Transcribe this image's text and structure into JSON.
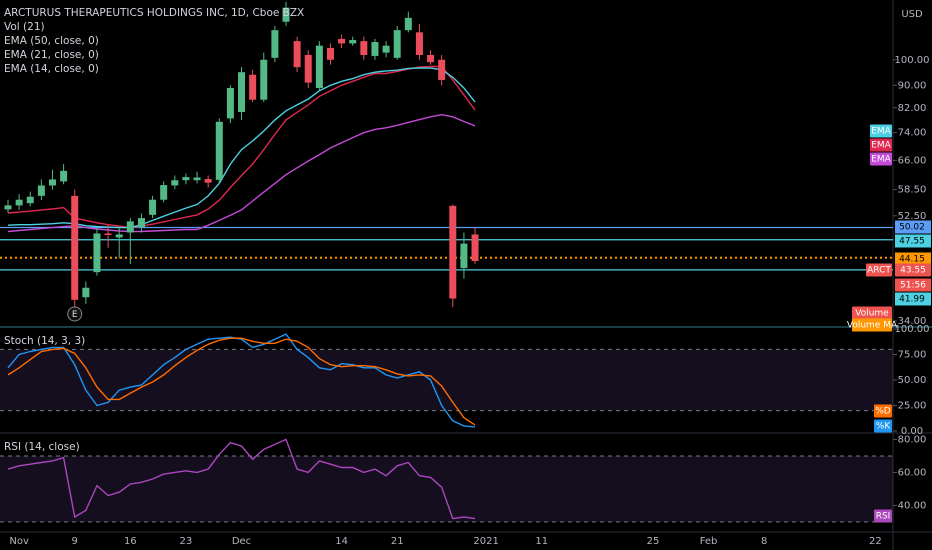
{
  "chart_data": [
    {
      "type": "candlestick",
      "title": "ARCTURUS THERAPEUTICS HOLDINGS INC, 1D, Cboe BZX",
      "legend": [
        "Vol (21)",
        "EMA (50, close, 0)",
        "EMA (21, close, 0)",
        "EMA (14, close, 0)"
      ],
      "currency": "USD",
      "log_scale": true,
      "grid": false,
      "up_color": "#53b987",
      "down_color": "#eb4d5c",
      "categories": [
        null,
        "Nov",
        null,
        null,
        null,
        null,
        "9",
        null,
        null,
        null,
        null,
        "16",
        null,
        null,
        null,
        null,
        "23",
        null,
        null,
        null,
        null,
        "Dec",
        null,
        null,
        null,
        null,
        null,
        null,
        null,
        null,
        "14",
        null,
        null,
        null,
        null,
        "21",
        null,
        null,
        null,
        null,
        null,
        null,
        null,
        "2021",
        null,
        null,
        null,
        null,
        "11",
        null,
        null,
        null,
        null,
        null,
        null,
        null,
        null,
        null,
        "25",
        null,
        null,
        null,
        null,
        "Feb",
        null,
        null,
        null,
        null,
        "8",
        null,
        null,
        null,
        null,
        null,
        null,
        null,
        null,
        null,
        "22"
      ],
      "open": [
        53.9,
        54.8,
        55.3,
        57,
        59.5,
        60.5,
        57,
        37.5,
        41.6,
        48.8,
        48,
        49,
        50.1,
        52.7,
        56.1,
        59.5,
        60.8,
        60.8,
        61.1,
        60.9,
        78.5,
        80.6,
        94,
        84.8,
        100.8,
        117,
        108,
        102,
        89,
        105,
        109,
        107,
        108,
        101.6,
        103,
        100.8,
        113,
        112,
        102,
        100,
        54.7,
        42.3,
        48.6,
        null,
        null,
        null,
        null,
        null,
        null,
        null,
        null,
        null,
        null,
        null,
        null,
        null,
        null,
        null,
        null,
        null,
        null,
        null,
        null,
        null,
        null,
        null,
        null,
        null,
        null,
        null,
        null,
        null,
        null,
        null,
        null,
        null,
        null,
        null,
        null
      ],
      "high": [
        56.1,
        57.4,
        58,
        61,
        63.5,
        65,
        58.5,
        40,
        50,
        50.5,
        50,
        52,
        53,
        57,
        60.5,
        62,
        62.5,
        63,
        62,
        78.5,
        90,
        97,
        96,
        103,
        115,
        127,
        110,
        104,
        108,
        107,
        111,
        110,
        110,
        109,
        108,
        115,
        122,
        116,
        104,
        102,
        55,
        49,
        50,
        null,
        null,
        null,
        null,
        null,
        null,
        null,
        null,
        null,
        null,
        null,
        null,
        null,
        null,
        null,
        null,
        null,
        null,
        null,
        null,
        null,
        null,
        null,
        null,
        null,
        null,
        null,
        null,
        null,
        null,
        null,
        null,
        null,
        null,
        null,
        null
      ],
      "low": [
        53.2,
        53.8,
        54.6,
        56,
        58.5,
        59.8,
        34.2,
        36.5,
        41,
        46,
        44,
        43,
        49,
        52,
        55.5,
        58.6,
        59.8,
        60,
        59,
        60,
        77,
        78,
        84,
        84,
        99,
        115,
        95,
        89,
        88,
        98,
        105,
        106,
        100,
        100,
        101,
        100,
        112,
        100,
        98,
        90,
        36,
        40.5,
        43,
        null,
        null,
        null,
        null,
        null,
        null,
        null,
        null,
        null,
        null,
        null,
        null,
        null,
        null,
        null,
        null,
        null,
        null,
        null,
        null,
        null,
        null,
        null,
        null,
        null,
        null,
        null,
        null,
        null,
        null,
        null,
        null,
        null,
        null,
        null,
        null
      ],
      "close": [
        54.8,
        56.1,
        56.8,
        59.5,
        61,
        63.2,
        37.1,
        39,
        48.8,
        48.5,
        48.6,
        51.3,
        52,
        56.1,
        59.6,
        60.8,
        61.6,
        61.5,
        60.2,
        77.4,
        89,
        95,
        84.8,
        100,
        113,
        124,
        97,
        91,
        106,
        100,
        107,
        108.5,
        102,
        107.6,
        106,
        113,
        118.9,
        102,
        99,
        92,
        37.3,
        46.8,
        43.55,
        null,
        null,
        null,
        null,
        null,
        null,
        null,
        null,
        null,
        null,
        null,
        null,
        null,
        null,
        null,
        null,
        null,
        null,
        null,
        null,
        null,
        null,
        null,
        null,
        null,
        null,
        null,
        null,
        null,
        null,
        null,
        null,
        null,
        null,
        null,
        null
      ],
      "series": [
        {
          "name": "EMA",
          "color": "#c34bd6",
          "values": [
            49.2,
            49.4,
            49.6,
            49.8,
            50,
            50.2,
            50.4,
            50,
            49.7,
            49.5,
            49.3,
            49.2,
            49.2,
            49.3,
            49.4,
            49.5,
            49.6,
            49.6,
            50.5,
            51.5,
            52.6,
            53.8,
            55.8,
            57.9,
            60,
            62.2,
            64,
            65.8,
            67.6,
            69.5,
            71,
            72.5,
            74,
            75,
            75.5,
            76.3,
            77.2,
            78.1,
            79,
            79.7,
            79,
            77.5,
            76.1,
            null,
            null,
            null,
            null,
            null,
            null,
            null,
            null,
            null,
            null,
            null,
            null,
            null,
            null,
            null,
            null,
            null,
            null,
            null,
            null,
            null,
            null,
            null,
            null,
            null,
            null,
            null,
            null,
            null,
            null,
            null,
            null,
            null,
            null,
            null,
            null
          ]
        },
        {
          "name": "EMA",
          "color": "#e0284f",
          "values": [
            53.1,
            53.3,
            53.5,
            53.8,
            54,
            54.3,
            52,
            51.5,
            51,
            50.6,
            50.3,
            50,
            50.3,
            50.7,
            51.2,
            51.7,
            52.2,
            52.7,
            54,
            56,
            59,
            62,
            65,
            69,
            73.5,
            78,
            80.5,
            83,
            86,
            88,
            90,
            91.5,
            93,
            94.5,
            94.5,
            95.3,
            96.2,
            97,
            97.3,
            97.2,
            92,
            86.5,
            81.3,
            null,
            null,
            null,
            null,
            null,
            null,
            null,
            null,
            null,
            null,
            null,
            null,
            null,
            null,
            null,
            null,
            null,
            null,
            null,
            null,
            null,
            null,
            null,
            null,
            null,
            null,
            null,
            null,
            null,
            null,
            null,
            null,
            null,
            null,
            null,
            null
          ]
        },
        {
          "name": "EMA",
          "color": "#4dd0e1",
          "values": [
            50.5,
            50.6,
            50.6,
            50.7,
            50.8,
            51,
            50.8,
            50.4,
            50.2,
            50.1,
            50,
            50,
            50.6,
            51.5,
            52.4,
            53.3,
            54.2,
            55,
            57,
            60,
            65,
            69,
            71.5,
            74.5,
            78,
            81,
            83,
            85,
            88,
            90,
            91.5,
            92.5,
            94,
            95,
            95.5,
            95.8,
            96.5,
            96.7,
            96.6,
            96,
            93,
            89,
            84,
            null,
            null,
            null,
            null,
            null,
            null,
            null,
            null,
            null,
            null,
            null,
            null,
            null,
            null,
            null,
            null,
            null,
            null,
            null,
            null,
            null,
            null,
            null,
            null,
            null,
            null,
            null,
            null,
            null,
            null,
            null,
            null,
            null,
            null,
            null,
            null
          ]
        }
      ],
      "ylim": [
        33.3,
        128
      ],
      "yticks": [
        {
          "value": 34,
          "label": "34.00"
        },
        {
          "value": 52.5,
          "label": "52.50"
        },
        {
          "value": 58.5,
          "label": "58.50"
        },
        {
          "value": 66,
          "label": "66.00"
        },
        {
          "value": 74,
          "label": "74.00"
        },
        {
          "value": 82,
          "label": "82.00"
        },
        {
          "value": 90,
          "label": "90.00"
        },
        {
          "value": 100,
          "label": "100.00"
        }
      ],
      "price_lines": [
        {
          "value": 50.02,
          "color": "#5b9cf6",
          "style": "solid"
        },
        {
          "value": 47.55,
          "color": "#4dd0e1",
          "style": "solid"
        },
        {
          "value": 44.15,
          "color": "#ff9800",
          "style": "dotted"
        },
        {
          "value": 41.99,
          "color": "#4dd0e1",
          "style": "solid"
        }
      ],
      "last_price": {
        "symbol": "ARCT",
        "value": 43.55,
        "countdown": "51:56",
        "color": "#ef5350"
      },
      "overlay_labels": [
        {
          "label": "Volume",
          "color": "#ef5350"
        },
        {
          "label": "Volume MA",
          "color": "#ff9800"
        }
      ],
      "earnings_marker": "E"
    },
    {
      "type": "line",
      "title": "Stoch (14, 3, 3)",
      "ylim": [
        -1,
        101
      ],
      "yticks": [
        {
          "value": 100,
          "label": "100.00"
        },
        {
          "value": 75,
          "label": "75.00"
        },
        {
          "value": 50,
          "label": "50.00"
        },
        {
          "value": 25,
          "label": "25.00"
        },
        {
          "value": 0,
          "label": "0.00"
        }
      ],
      "bands": [
        20,
        80
      ],
      "band_color": "#7e57c2",
      "series": [
        {
          "name": "%K",
          "color": "#2196f3",
          "values": [
            62,
            75,
            78,
            80,
            82,
            82,
            65,
            40,
            25,
            28,
            40,
            43,
            45,
            55,
            65,
            72,
            80,
            85,
            90,
            91,
            92,
            90,
            82,
            85,
            90,
            95,
            80,
            72,
            62,
            60,
            66,
            65,
            62,
            62,
            55,
            52,
            55,
            58,
            50,
            25,
            10,
            5,
            4
          ]
        },
        {
          "name": "%D",
          "color": "#ff6d00",
          "values": [
            55,
            62,
            70,
            78,
            80,
            81,
            76,
            62,
            43,
            31,
            31,
            37,
            43,
            48,
            55,
            64,
            72,
            79,
            85,
            89,
            91,
            91,
            88,
            86,
            86,
            90,
            88,
            82,
            71,
            65,
            63,
            64,
            64,
            63,
            60,
            56,
            54,
            55,
            54,
            44,
            28,
            13,
            6
          ]
        }
      ]
    },
    {
      "type": "line",
      "title": "RSI (14, close)",
      "ylim": [
        23.9,
        83.3
      ],
      "yticks": [
        {
          "value": 80,
          "label": "80.00"
        },
        {
          "value": 60,
          "label": "60.00"
        },
        {
          "value": 40,
          "label": "40.00"
        }
      ],
      "bands": [
        30,
        70
      ],
      "band_color": "#7e57c2",
      "series": [
        {
          "name": "RSI",
          "color": "#ab47bc",
          "values": [
            62,
            64,
            65,
            66,
            67,
            69,
            33,
            37,
            52,
            46,
            48,
            53,
            54,
            56,
            59,
            60,
            61,
            60,
            62,
            71,
            78,
            76,
            68,
            74,
            77,
            80,
            62,
            60,
            67,
            65,
            63,
            63,
            60,
            62,
            58,
            64,
            66,
            58,
            57,
            51,
            32,
            33,
            32
          ]
        }
      ]
    }
  ]
}
